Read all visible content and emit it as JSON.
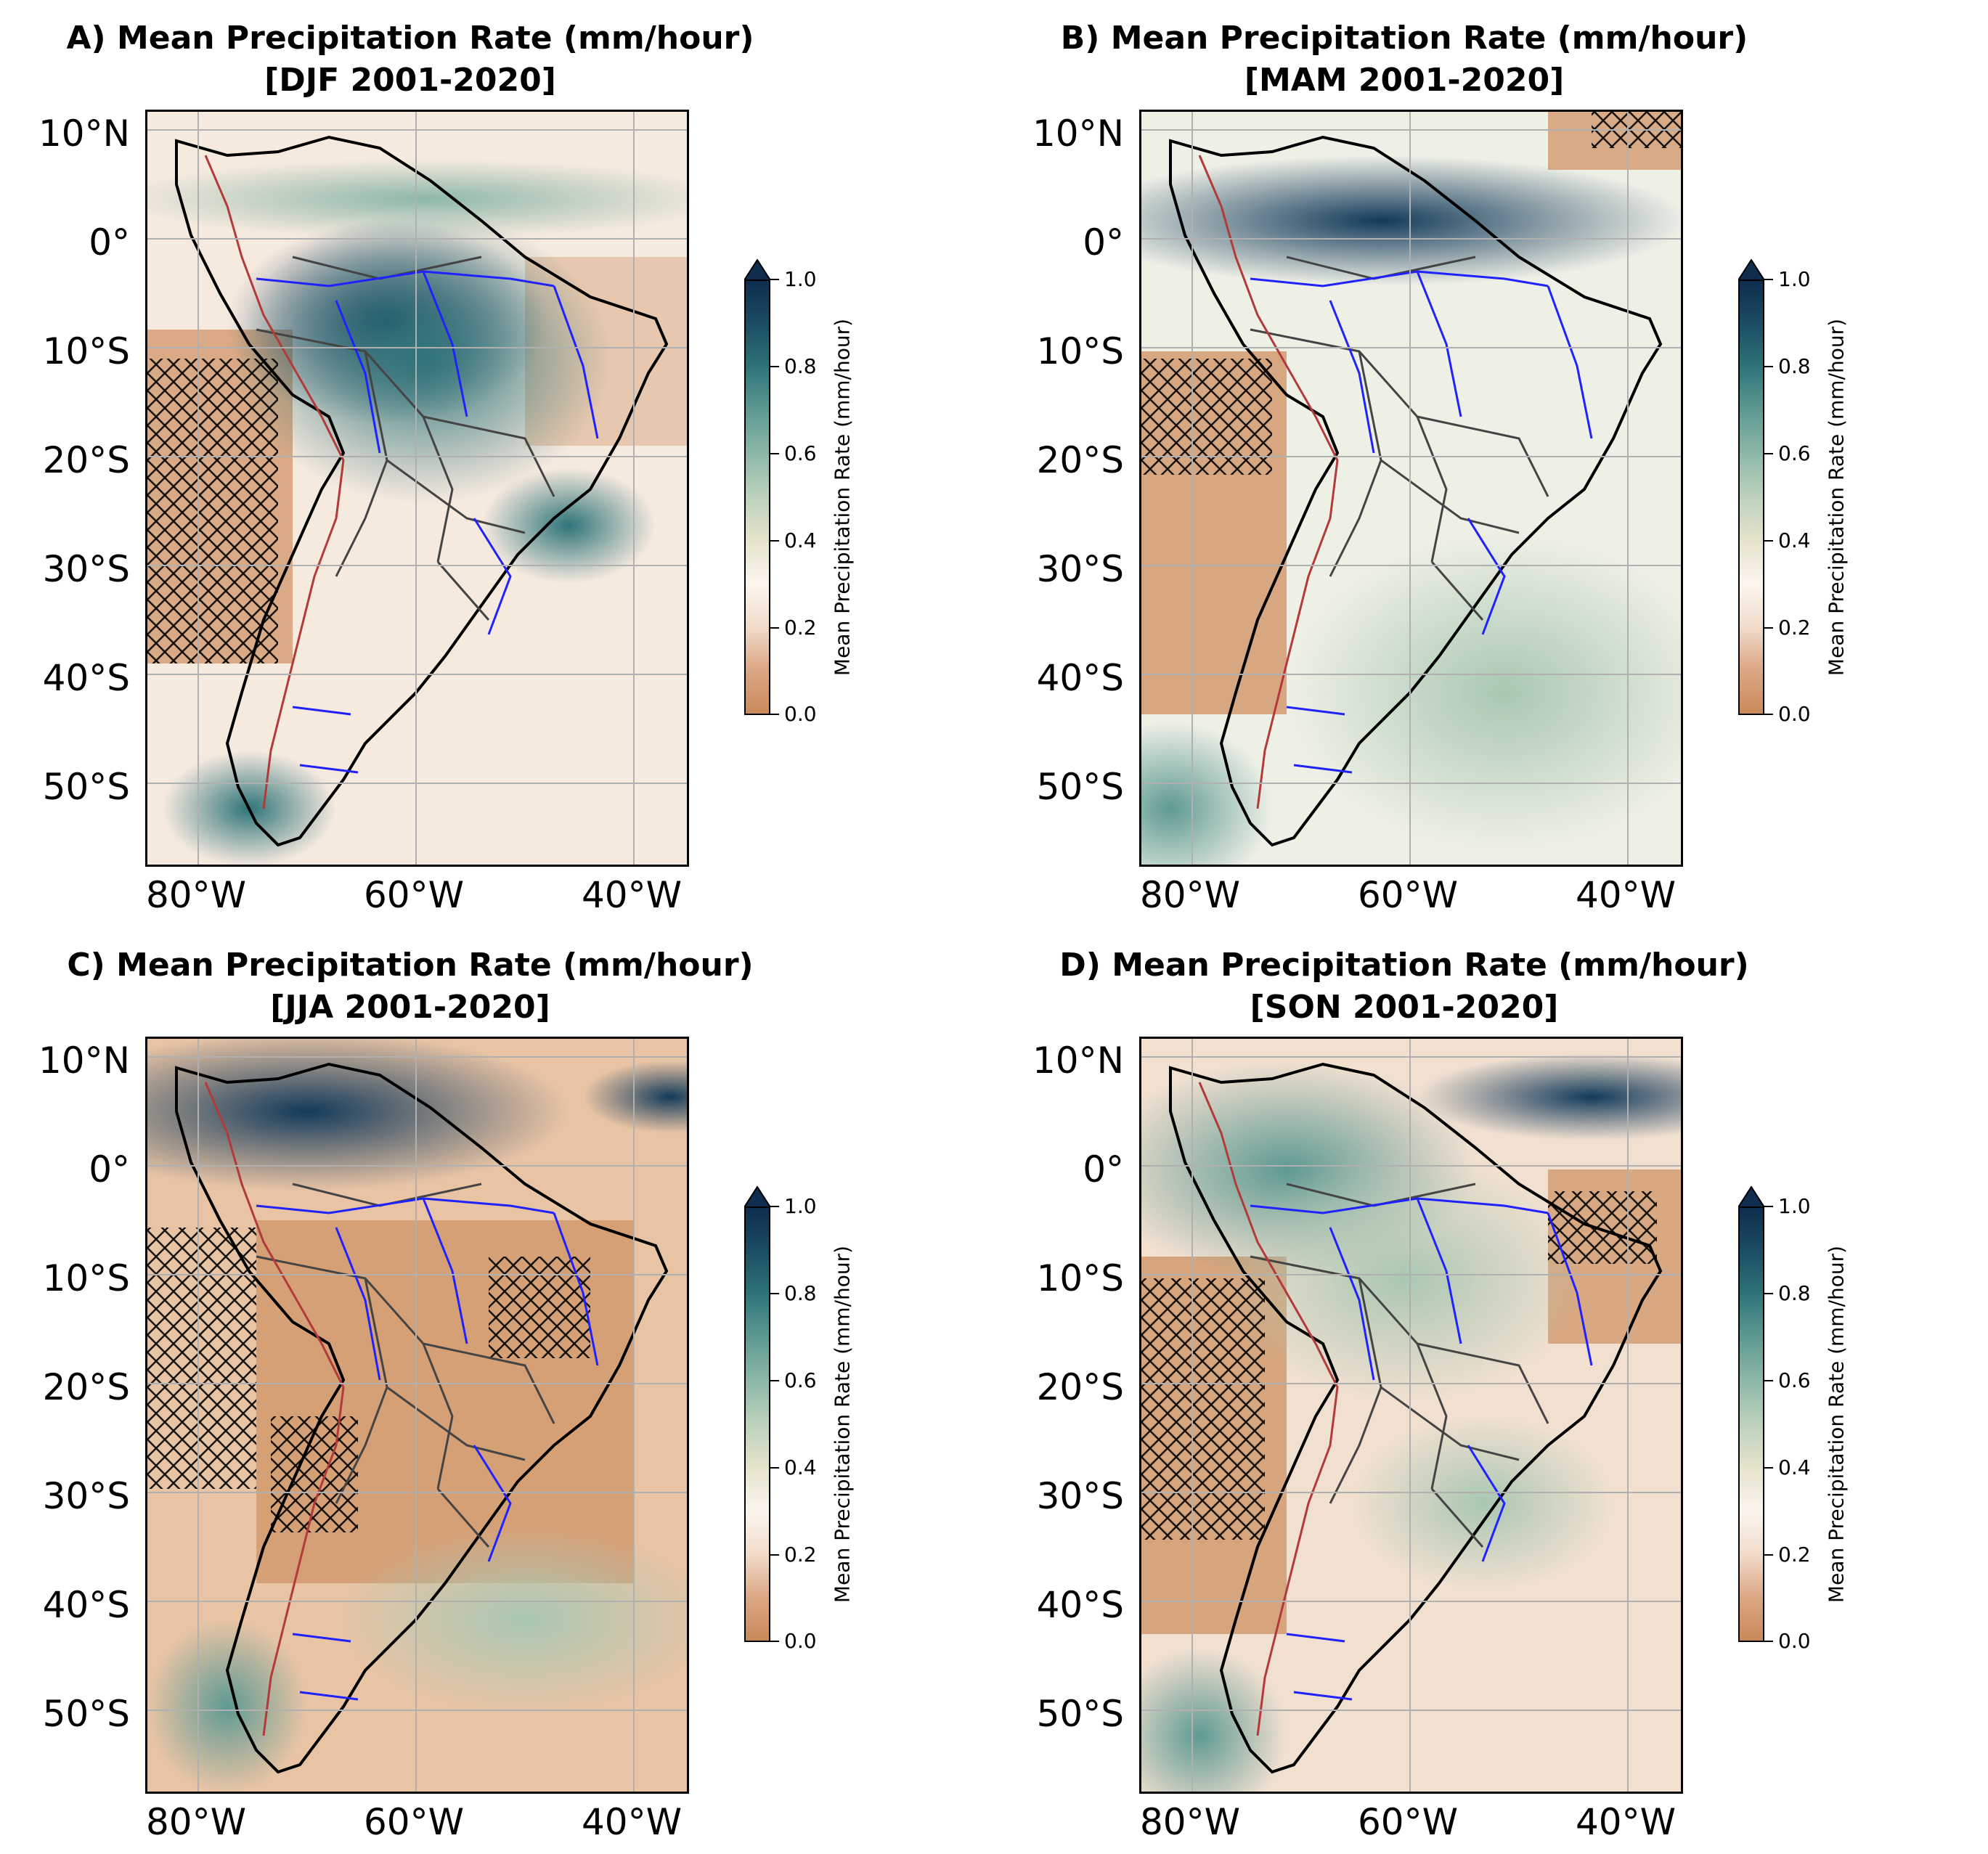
{
  "panels": [
    {
      "title_line1": "A) Mean Precipitation Rate (mm/hour)",
      "title_line2": "[DJF 2001-2020]"
    },
    {
      "title_line1": "B) Mean Precipitation Rate (mm/hour)",
      "title_line2": "[MAM 2001-2020]"
    },
    {
      "title_line1": "C) Mean Precipitation Rate (mm/hour)",
      "title_line2": "[JJA 2001-2020]"
    },
    {
      "title_line1": "D) Mean Precipitation Rate (mm/hour)",
      "title_line2": "[SON 2001-2020]"
    }
  ],
  "lat_labels": [
    "10°N",
    "0°",
    "10°S",
    "20°S",
    "30°S",
    "40°S",
    "50°S"
  ],
  "lon_labels": [
    "80°W",
    "60°W",
    "40°W"
  ],
  "colorbar": {
    "label": "Mean Precipitation Rate (mm/hour)",
    "ticks": [
      "1.0",
      "0.8",
      "0.6",
      "0.4",
      "0.2",
      "0.0"
    ],
    "extend": "max"
  },
  "colors": {
    "dry": "#c9895a",
    "neutral": "#fbf5ef",
    "wet": "#0f2d4e",
    "coastline": "#000000",
    "rivers": "#1f22ff",
    "borders": "#444444",
    "elevation_contour": "#b33a3a",
    "gridlines": "#b0b0b0"
  }
}
